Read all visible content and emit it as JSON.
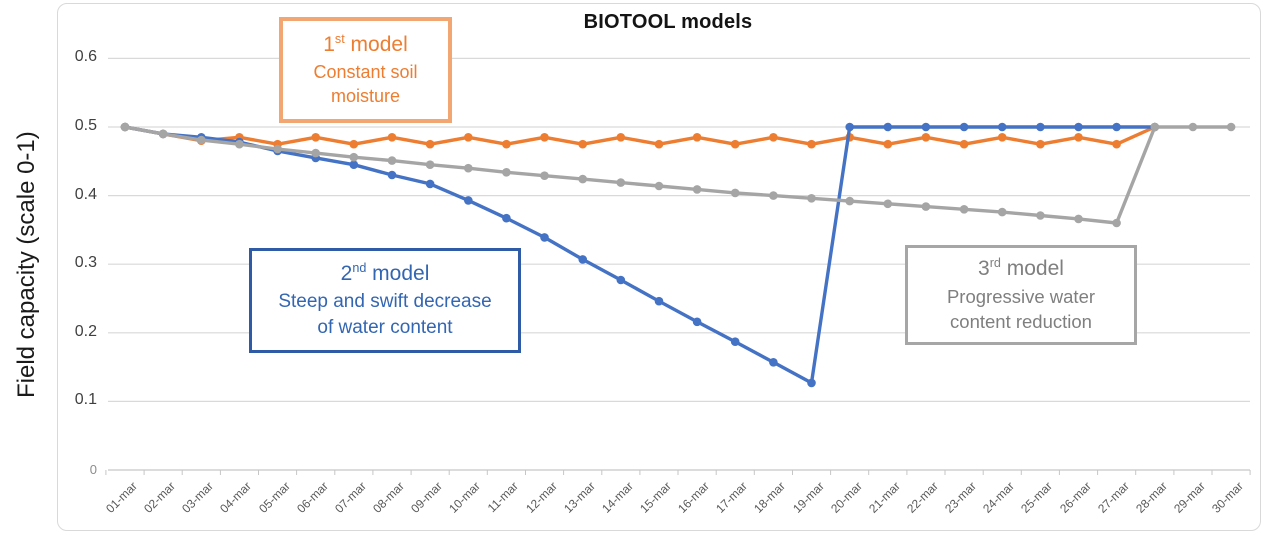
{
  "header": {
    "title": "BIOTOOL models"
  },
  "y_axis": {
    "label": "Field capacity (scale 0-1)"
  },
  "annotations": {
    "model1": {
      "num": "1",
      "sup": "st",
      "rest": " model",
      "line1": "Constant soil",
      "line2": "moisture",
      "text_color": "#ED7D31",
      "border_color": "#F2A672"
    },
    "model2": {
      "num": "2",
      "sup": "nd",
      "rest": " model",
      "line1": "Steep and swift decrease",
      "line2": "of water content",
      "text_color": "#3366B2",
      "border_color": "#2F5AA5"
    },
    "model3": {
      "num": "3",
      "sup": "rd",
      "rest": " model",
      "line1": "Progressive water",
      "line2": "content reduction",
      "text_color": "#7F7F7F",
      "border_color": "#A6A6A6"
    }
  },
  "chart_data": {
    "type": "line",
    "title": "BIOTOOL models",
    "xlabel": "",
    "ylabel": "Field capacity (scale 0-1)",
    "ylim": [
      0,
      0.65
    ],
    "grid": true,
    "legend_position": "none - series labeled via annotation boxes",
    "marker": "circle",
    "yticks": [
      {
        "v": 0,
        "label": "0"
      },
      {
        "v": 0.1,
        "label": "0.1"
      },
      {
        "v": 0.2,
        "label": "0.2"
      },
      {
        "v": 0.3,
        "label": "0.3"
      },
      {
        "v": 0.4,
        "label": "0.4"
      },
      {
        "v": 0.5,
        "label": "0.5"
      },
      {
        "v": 0.6,
        "label": "0.6"
      }
    ],
    "categories": [
      "01-mar",
      "02-mar",
      "03-mar",
      "04-mar",
      "05-mar",
      "06-mar",
      "07-mar",
      "08-mar",
      "09-mar",
      "10-mar",
      "11-mar",
      "12-mar",
      "13-mar",
      "14-mar",
      "15-mar",
      "16-mar",
      "17-mar",
      "18-mar",
      "19-mar",
      "20-mar",
      "21-mar",
      "22-mar",
      "23-mar",
      "24-mar",
      "25-mar",
      "26-mar",
      "27-mar",
      "28-mar",
      "29-mar",
      "30-mar"
    ],
    "series": [
      {
        "name": "1st model - Constant soil moisture",
        "color": "#ED7D31",
        "values": [
          0.5,
          0.49,
          0.48,
          0.485,
          0.475,
          0.485,
          0.475,
          0.485,
          0.475,
          0.485,
          0.475,
          0.485,
          0.475,
          0.485,
          0.475,
          0.485,
          0.475,
          0.485,
          0.475,
          0.485,
          0.475,
          0.485,
          0.475,
          0.485,
          0.475,
          0.485,
          0.475,
          0.5,
          null,
          null
        ]
      },
      {
        "name": "2nd model - Steep and swift decrease of water content",
        "color": "#4472C4",
        "values": [
          0.5,
          0.49,
          0.485,
          0.478,
          0.465,
          0.455,
          0.445,
          0.43,
          0.417,
          0.393,
          0.367,
          0.339,
          0.307,
          0.277,
          0.246,
          0.216,
          0.187,
          0.157,
          0.127,
          0.5,
          0.5,
          0.5,
          0.5,
          0.5,
          0.5,
          0.5,
          0.5,
          0.5,
          null,
          null
        ]
      },
      {
        "name": "3rd model - Progressive water content reduction",
        "color": "#A5A5A5",
        "values": [
          0.5,
          0.49,
          0.481,
          0.475,
          0.468,
          0.462,
          0.456,
          0.451,
          0.445,
          0.44,
          0.434,
          0.429,
          0.424,
          0.419,
          0.414,
          0.409,
          0.404,
          0.4,
          0.396,
          0.392,
          0.388,
          0.384,
          0.38,
          0.376,
          0.371,
          0.366,
          0.36,
          0.5,
          0.5,
          0.5
        ]
      }
    ]
  }
}
